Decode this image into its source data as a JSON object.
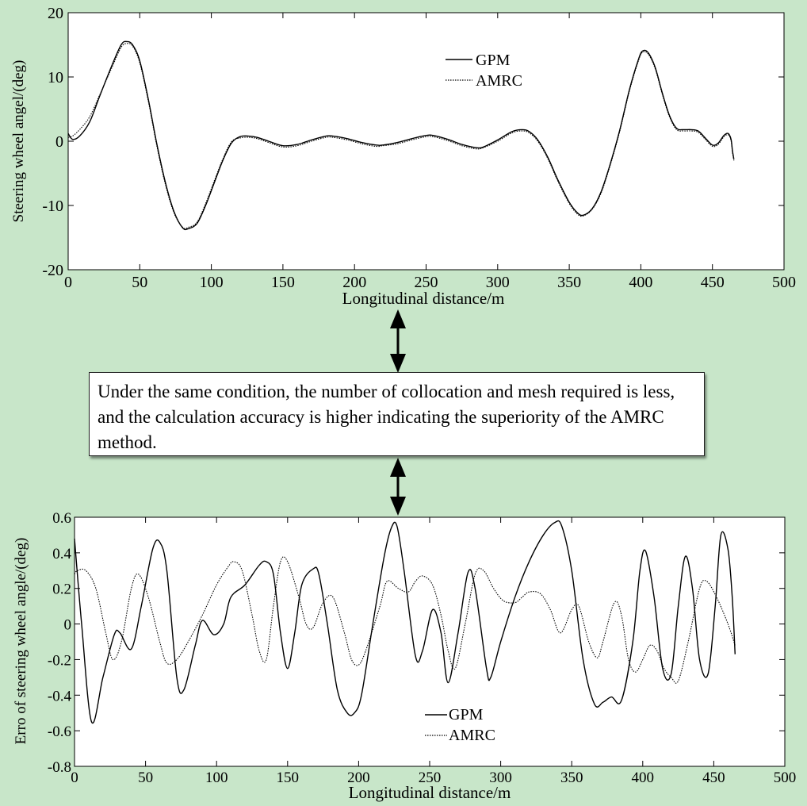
{
  "callout_text": "Under the same condition, the number of collocation and mesh required is less, and the calculation accuracy is higher indicating the superiority of the AMRC method.",
  "chart_data": [
    {
      "type": "line",
      "xlabel": "Longitudinal distance/m",
      "ylabel": "Steering wheel angel/(deg)",
      "xlim": [
        0,
        500
      ],
      "ylim": [
        -20,
        20
      ],
      "xticks": [
        0,
        50,
        100,
        150,
        200,
        250,
        300,
        350,
        400,
        450,
        500
      ],
      "yticks": [
        -20,
        -10,
        0,
        10,
        20
      ],
      "legend": "top-right",
      "grid": false,
      "series": [
        {
          "name": "GPM",
          "style": "solid",
          "x": [
            0,
            3,
            8,
            15,
            22,
            30,
            37,
            41,
            45,
            50,
            56,
            62,
            68,
            74,
            80,
            84,
            90,
            96,
            102,
            108,
            114,
            120,
            126,
            132,
            140,
            150,
            160,
            170,
            180,
            185,
            195,
            205,
            215,
            220,
            230,
            240,
            250,
            255,
            265,
            275,
            285,
            290,
            300,
            310,
            317,
            322,
            328,
            335,
            342,
            350,
            356,
            360,
            366,
            372,
            378,
            385,
            392,
            398,
            401,
            405,
            410,
            415,
            420,
            425,
            430,
            435,
            440,
            445,
            450,
            454,
            458,
            461,
            463,
            464,
            465
          ],
          "y": [
            1.2,
            0.3,
            0.8,
            3.0,
            7.0,
            11.5,
            15.0,
            15.5,
            15.0,
            12.5,
            6.5,
            -0.5,
            -6.5,
            -11.0,
            -13.5,
            -13.6,
            -12.8,
            -10.0,
            -6.5,
            -3.0,
            -0.3,
            0.7,
            0.8,
            0.6,
            0.0,
            -0.7,
            -0.5,
            0.2,
            0.8,
            0.8,
            0.4,
            -0.2,
            -0.6,
            -0.6,
            -0.2,
            0.4,
            0.9,
            0.9,
            0.3,
            -0.5,
            -1.0,
            -0.9,
            0.2,
            1.5,
            1.8,
            1.5,
            0.2,
            -2.5,
            -6.0,
            -9.5,
            -11.2,
            -11.5,
            -10.5,
            -8.0,
            -4.0,
            1.5,
            8.0,
            12.5,
            14.0,
            13.8,
            11.5,
            7.5,
            4.0,
            2.0,
            1.8,
            1.8,
            1.6,
            0.5,
            -0.6,
            -0.3,
            0.9,
            1.2,
            0.3,
            -1.5,
            -2.8
          ]
        },
        {
          "name": "AMRC",
          "style": "dotted",
          "x": [
            0,
            3,
            8,
            15,
            22,
            30,
            37,
            41,
            45,
            50,
            56,
            62,
            68,
            74,
            80,
            84,
            90,
            96,
            102,
            108,
            114,
            120,
            126,
            132,
            140,
            150,
            160,
            170,
            180,
            185,
            195,
            205,
            215,
            220,
            230,
            240,
            250,
            255,
            265,
            275,
            285,
            290,
            300,
            310,
            317,
            322,
            328,
            335,
            342,
            350,
            356,
            360,
            366,
            372,
            378,
            385,
            392,
            398,
            401,
            405,
            410,
            415,
            420,
            425,
            430,
            435,
            440,
            445,
            450,
            454,
            458,
            461,
            463,
            464,
            465
          ],
          "y": [
            0.6,
            0.8,
            1.8,
            3.8,
            7.2,
            11.2,
            14.6,
            15.2,
            14.8,
            12.2,
            6.2,
            -0.8,
            -6.8,
            -11.2,
            -13.4,
            -13.4,
            -12.6,
            -9.7,
            -6.2,
            -2.8,
            -0.1,
            0.5,
            0.6,
            0.4,
            -0.2,
            -0.9,
            -0.7,
            0.0,
            0.6,
            0.6,
            0.2,
            -0.4,
            -0.8,
            -0.7,
            -0.4,
            0.2,
            0.7,
            0.7,
            0.1,
            -0.7,
            -1.2,
            -1.0,
            0.0,
            1.3,
            1.6,
            1.3,
            0.0,
            -2.7,
            -6.2,
            -9.7,
            -11.4,
            -11.6,
            -10.6,
            -8.2,
            -4.2,
            1.3,
            7.8,
            12.3,
            13.8,
            13.6,
            11.3,
            7.3,
            3.8,
            1.8,
            1.6,
            1.6,
            1.4,
            0.3,
            -0.8,
            -0.5,
            0.7,
            1.0,
            0.1,
            -1.7,
            -3.0
          ]
        }
      ]
    },
    {
      "type": "line",
      "xlabel": "Longitudinal distance/m",
      "ylabel": "Erro of steering wheel angle/(deg)",
      "xlim": [
        0,
        500
      ],
      "ylim": [
        -0.8,
        0.6
      ],
      "xticks": [
        0,
        50,
        100,
        150,
        200,
        250,
        300,
        350,
        400,
        450,
        500
      ],
      "yticks": [
        -0.8,
        -0.6,
        -0.4,
        -0.2,
        0,
        0.2,
        0.4,
        0.6
      ],
      "legend": "bottom-center",
      "grid": false,
      "series": [
        {
          "name": "GPM",
          "style": "solid",
          "x": [
            0,
            5,
            12,
            20,
            28,
            32,
            40,
            47,
            55,
            60,
            65,
            72,
            77,
            85,
            90,
            98,
            105,
            110,
            120,
            130,
            135,
            140,
            145,
            150,
            155,
            160,
            168,
            172,
            178,
            185,
            192,
            197,
            202,
            210,
            218,
            223,
            227,
            232,
            240,
            245,
            252,
            258,
            263,
            270,
            277,
            282,
            290,
            293,
            300,
            310,
            320,
            330,
            338,
            343,
            350,
            358,
            366,
            372,
            378,
            385,
            393,
            398,
            402,
            408,
            414,
            420,
            425,
            430,
            435,
            440,
            446,
            451,
            455,
            460,
            463,
            465
          ],
          "y": [
            0.48,
            0.0,
            -0.55,
            -0.3,
            -0.06,
            -0.05,
            -0.14,
            0.1,
            0.42,
            0.46,
            0.3,
            -0.3,
            -0.37,
            -0.12,
            0.02,
            -0.06,
            0.0,
            0.15,
            0.22,
            0.33,
            0.35,
            0.28,
            -0.05,
            -0.25,
            -0.05,
            0.22,
            0.31,
            0.28,
            0.0,
            -0.37,
            -0.5,
            -0.5,
            -0.4,
            0.0,
            0.38,
            0.54,
            0.55,
            0.3,
            -0.18,
            -0.15,
            0.08,
            -0.05,
            -0.33,
            -0.05,
            0.29,
            0.2,
            -0.25,
            -0.3,
            -0.1,
            0.15,
            0.35,
            0.5,
            0.57,
            0.55,
            0.3,
            -0.2,
            -0.45,
            -0.44,
            -0.41,
            -0.43,
            -0.1,
            0.3,
            0.41,
            0.15,
            -0.25,
            -0.28,
            0.1,
            0.38,
            0.2,
            -0.2,
            -0.28,
            0.1,
            0.5,
            0.42,
            0.15,
            -0.17
          ]
        },
        {
          "name": "AMRC",
          "style": "dotted",
          "x": [
            0,
            2,
            8,
            15,
            22,
            27,
            33,
            40,
            45,
            52,
            60,
            65,
            72,
            80,
            90,
            100,
            108,
            112,
            118,
            125,
            130,
            135,
            140,
            145,
            150,
            158,
            163,
            168,
            175,
            182,
            190,
            195,
            200,
            205,
            215,
            220,
            228,
            235,
            240,
            245,
            252,
            258,
            263,
            268,
            275,
            282,
            288,
            295,
            302,
            310,
            315,
            320,
            328,
            335,
            342,
            350,
            355,
            362,
            368,
            372,
            380,
            385,
            390,
            395,
            400,
            405,
            410,
            415,
            420,
            425,
            432,
            440,
            445,
            452,
            460,
            465
          ],
          "y": [
            0.28,
            0.3,
            0.3,
            0.2,
            -0.05,
            -0.2,
            -0.1,
            0.2,
            0.28,
            0.15,
            -0.1,
            -0.22,
            -0.2,
            -0.1,
            0.05,
            0.22,
            0.32,
            0.35,
            0.3,
            0.05,
            -0.15,
            -0.2,
            0.1,
            0.35,
            0.35,
            0.15,
            0.0,
            -0.02,
            0.12,
            0.15,
            -0.05,
            -0.2,
            -0.23,
            -0.15,
            0.1,
            0.24,
            0.2,
            0.18,
            0.24,
            0.27,
            0.22,
            0.05,
            -0.15,
            -0.25,
            0.0,
            0.28,
            0.3,
            0.2,
            0.13,
            0.12,
            0.15,
            0.18,
            0.17,
            0.08,
            -0.05,
            0.08,
            0.1,
            -0.1,
            -0.19,
            -0.1,
            0.12,
            0.05,
            -0.2,
            -0.27,
            -0.2,
            -0.12,
            -0.15,
            -0.25,
            -0.3,
            -0.32,
            -0.1,
            0.2,
            0.24,
            0.15,
            0.0,
            -0.12
          ]
        }
      ]
    }
  ]
}
